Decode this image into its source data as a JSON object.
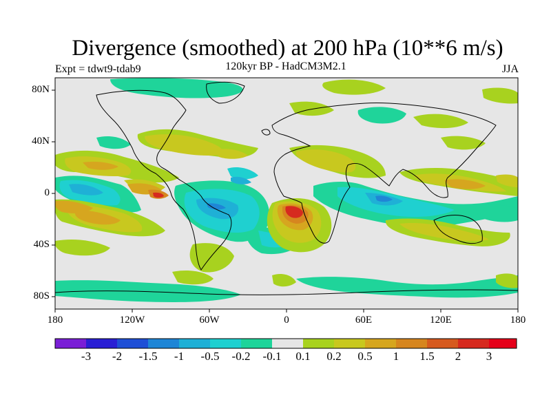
{
  "title": "Divergence (smoothed) at 200 hPa (10**6 m/s)",
  "subtitle": "120kyr BP - HadCM3M2.1",
  "experiment": "Expt = tdwt9-tdab9",
  "season": "JJA",
  "lat_axis": [
    "80N",
    "40N",
    "0",
    "40S",
    "80S"
  ],
  "lon_axis": [
    "180",
    "120W",
    "60W",
    "0",
    "60E",
    "120E",
    "180"
  ],
  "colorbar": {
    "labels": [
      "-3",
      "-2",
      "-1.5",
      "-1",
      "-0.5",
      "-0.2",
      "-0.1",
      "0.1",
      "0.2",
      "0.5",
      "1",
      "1.5",
      "2",
      "3"
    ],
    "colors": [
      "#7a1fd6",
      "#2a1fd4",
      "#1f4fd6",
      "#1f86d6",
      "#1fb0d6",
      "#1fd0d0",
      "#1fd49a",
      "#e6e6e6",
      "#a8d21f",
      "#c8c81f",
      "#d6a61f",
      "#d6861f",
      "#d65a1f",
      "#d62a1f",
      "#e6001a"
    ]
  },
  "colors": {
    "background": "#e6e6e6",
    "pos_light": "#a8d21f",
    "pos_mid": "#c8c81f",
    "pos_high": "#d6a61f",
    "pos_vhigh": "#d6861f",
    "pos_max": "#d62a1f",
    "neg_light": "#1fd49a",
    "neg_mid": "#1fd0d0",
    "neg_high": "#1fb0d6",
    "neg_vhigh": "#1f86d6"
  }
}
